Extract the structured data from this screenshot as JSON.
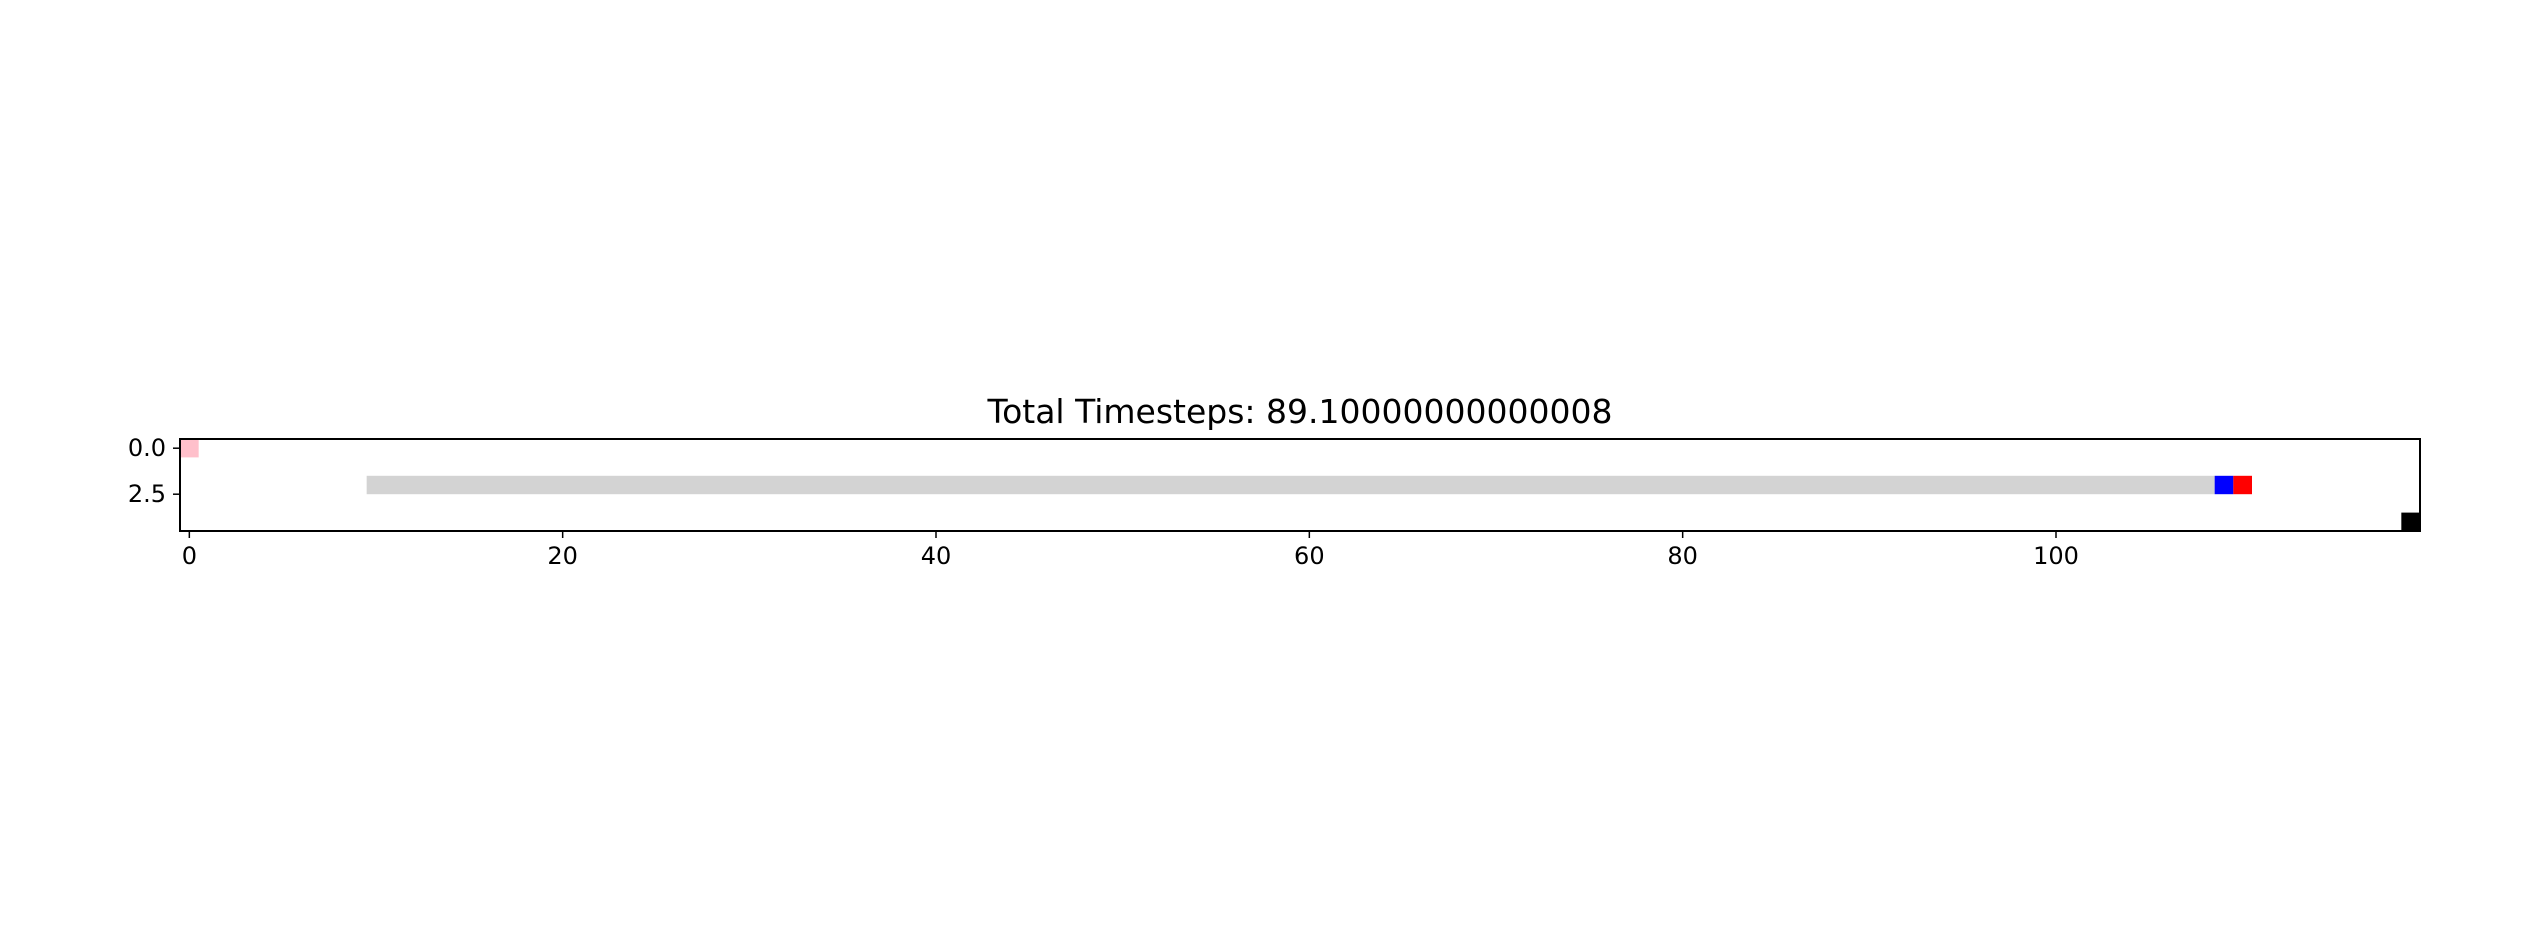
{
  "chart_data": {
    "type": "heatmap",
    "title": "Total Timesteps: 89.10000000000008",
    "xlabel": "",
    "ylabel": "",
    "xlim": [
      -0.5,
      119.5
    ],
    "ylim": [
      4.5,
      -0.5
    ],
    "x_ticks": [
      0,
      20,
      40,
      60,
      80,
      100
    ],
    "x_tick_labels": [
      "0",
      "20",
      "40",
      "60",
      "80",
      "100"
    ],
    "y_ticks": [
      0.0,
      2.5
    ],
    "y_tick_labels": [
      "0.0",
      "2.5"
    ],
    "grid": false,
    "background_color": "#ffffff",
    "cells": [
      {
        "name": "pink-cell",
        "row": 0,
        "col_start": 0,
        "col_end": 0,
        "color": "#ffc0cb"
      },
      {
        "name": "gray-track",
        "row": 2,
        "col_start": 10,
        "col_end": 108,
        "color": "#d3d3d3"
      },
      {
        "name": "blue-cell",
        "row": 2,
        "col_start": 109,
        "col_end": 109,
        "color": "#0000ff"
      },
      {
        "name": "red-cell",
        "row": 2,
        "col_start": 110,
        "col_end": 110,
        "color": "#ff0000"
      },
      {
        "name": "black-cell",
        "row": 4,
        "col_start": 119,
        "col_end": 119,
        "color": "#000000"
      }
    ]
  }
}
